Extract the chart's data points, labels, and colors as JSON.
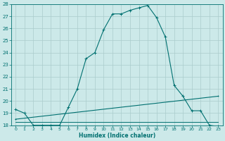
{
  "title": "",
  "xlabel": "Humidex (Indice chaleur)",
  "xlim": [
    -0.5,
    23.5
  ],
  "ylim": [
    18,
    28
  ],
  "yticks": [
    18,
    19,
    20,
    21,
    22,
    23,
    24,
    25,
    26,
    27,
    28
  ],
  "xtick_labels": [
    "0",
    "1",
    "2",
    "3",
    "4",
    "5",
    "6",
    "7",
    "8",
    "9",
    "10",
    "11",
    "12",
    "13",
    "14",
    "15",
    "16",
    "17",
    "18",
    "19",
    "20",
    "21",
    "22",
    "23"
  ],
  "xtick_pos": [
    0,
    1,
    2,
    3,
    4,
    5,
    6,
    7,
    8,
    9,
    10,
    11,
    12,
    13,
    14,
    15,
    16,
    17,
    18,
    19,
    20,
    21,
    22,
    23
  ],
  "bg_color": "#cce9e9",
  "line_color": "#007070",
  "grid_color": "#aacccc",
  "line1_x": [
    0,
    1,
    2,
    3,
    4,
    5,
    6,
    7,
    8,
    9,
    10,
    11,
    12,
    13,
    14,
    15,
    16,
    17,
    18,
    19,
    20,
    21,
    22,
    23
  ],
  "line1_y": [
    19.3,
    19.0,
    18.0,
    18.0,
    18.0,
    18.0,
    19.5,
    21.0,
    23.5,
    24.0,
    25.9,
    27.2,
    27.2,
    27.5,
    27.7,
    27.9,
    26.9,
    25.3,
    21.3,
    20.4,
    19.2,
    19.2,
    18.0,
    17.9
  ],
  "line2_x": [
    0,
    23
  ],
  "line2_y": [
    18.5,
    20.4
  ],
  "line3_x": [
    0,
    23
  ],
  "line3_y": [
    18.3,
    18.3
  ]
}
